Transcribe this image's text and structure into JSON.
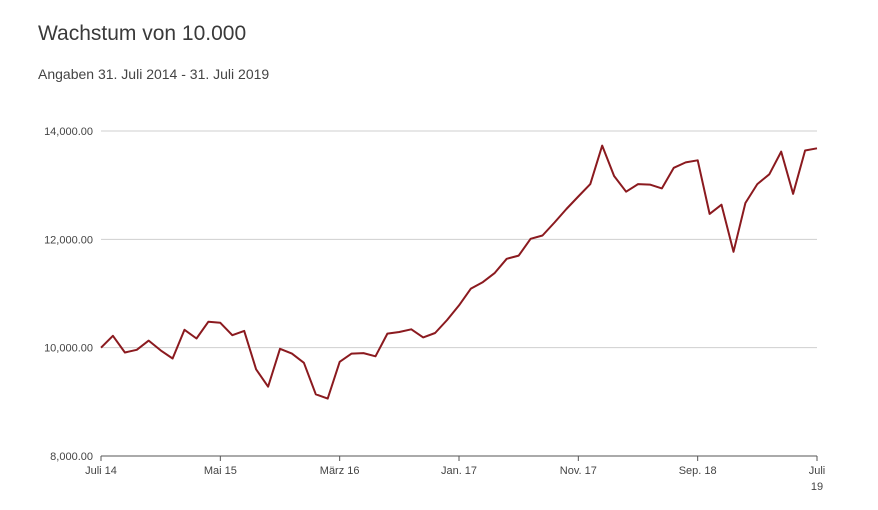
{
  "chart_data": {
    "type": "line",
    "title": "Wachstum von 10.000",
    "subtitle": "Angaben 31. Juli 2014 - 31. Juli 2019",
    "xlabel": "",
    "ylabel": "",
    "ylim": [
      8000,
      14000
    ],
    "yticks": [
      "8,000.00",
      "10,000.00",
      "12,000.00",
      "14,000.00"
    ],
    "ytick_values": [
      8000,
      10000,
      12000,
      14000
    ],
    "xtick_labels": [
      "Juli 14",
      "Mai 15",
      "März 16",
      "Jan. 17",
      "Nov. 17",
      "Sep. 18",
      "Juli 19"
    ],
    "xtick_index": [
      0,
      10,
      20,
      30,
      40,
      50,
      60
    ],
    "grid": true,
    "line_color": "#8b1a1f",
    "series": [
      {
        "values": [
          10000,
          10220,
          9910,
          9960,
          10130,
          9950,
          9800,
          10330,
          10170,
          10480,
          10460,
          10230,
          10310,
          9600,
          9280,
          9980,
          9890,
          9720,
          9140,
          9060,
          9740,
          9890,
          9900,
          9840,
          10260,
          10290,
          10340,
          10190,
          10270,
          10510,
          10780,
          11090,
          11210,
          11380,
          11640,
          11700,
          12010,
          12070,
          12310,
          12560,
          12790,
          13020,
          13730,
          13170,
          12880,
          13020,
          13010,
          12940,
          13320,
          13420,
          13460,
          12470,
          12640,
          11770,
          12670,
          13020,
          13200,
          13620,
          12840,
          13640,
          13680
        ]
      }
    ]
  }
}
